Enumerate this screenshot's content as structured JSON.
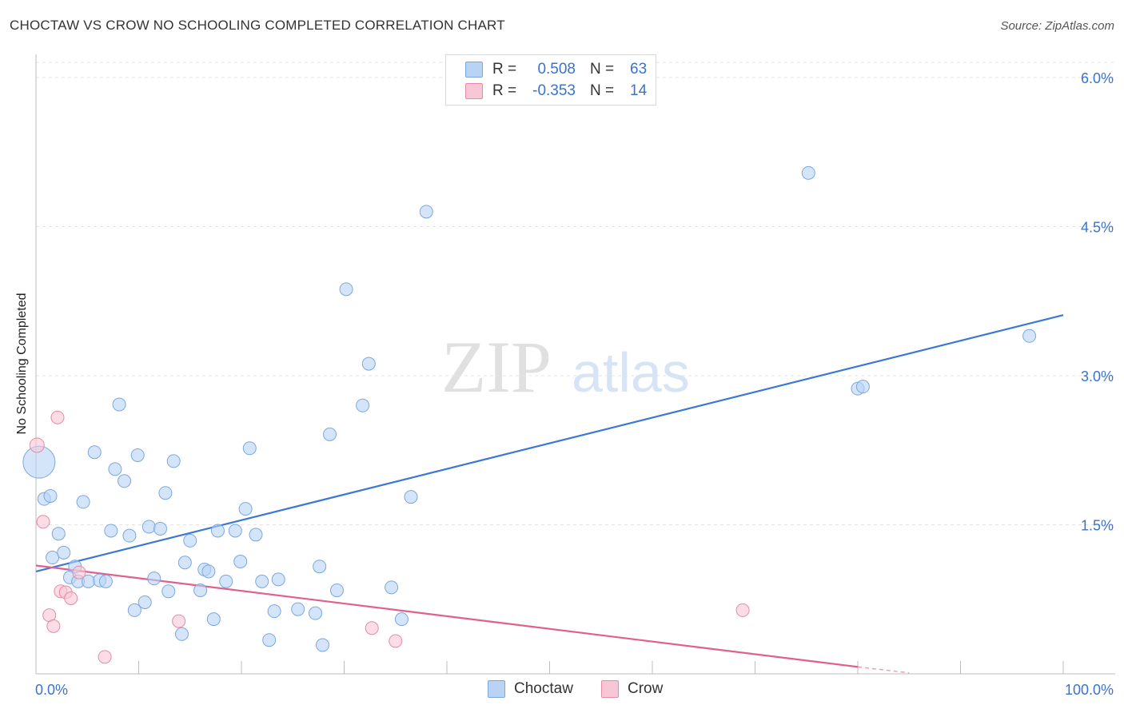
{
  "header": {
    "title": "CHOCTAW VS CROW NO SCHOOLING COMPLETED CORRELATION CHART",
    "source": "Source: ZipAtlas.com"
  },
  "watermark": {
    "zip": "ZIP",
    "atlas": "atlas"
  },
  "legend_stats": [
    {
      "r_label": "R =",
      "r_value": "0.508",
      "n_label": "N =",
      "n_value": "63",
      "fill": "#b9d3f5",
      "stroke": "#7aa7e0"
    },
    {
      "r_label": "R =",
      "r_value": "-0.353",
      "n_label": "N =",
      "n_value": "14",
      "fill": "#f8c7d6",
      "stroke": "#e68aa8"
    }
  ],
  "chart_data": {
    "type": "scatter",
    "title": "CHOCTAW VS CROW NO SCHOOLING COMPLETED CORRELATION CHART",
    "xlabel": "",
    "ylabel": "No Schooling Completed",
    "xlim": [
      0,
      100
    ],
    "ylim": [
      0,
      6.25
    ],
    "x_tick_labels": [
      "0.0%",
      "100.0%"
    ],
    "y_ticks": [
      1.5,
      3.0,
      4.5,
      6.0
    ],
    "y_tick_labels": [
      "1.5%",
      "3.0%",
      "4.5%",
      "6.0%"
    ],
    "grid": true,
    "legend_position": "top-center",
    "series": [
      {
        "name": "Choctaw",
        "color": "#3a78d4",
        "fill": "#b9d3f5",
        "stroke": "#7aa7e0",
        "trend": {
          "x": [
            0,
            100
          ],
          "y": [
            1.03,
            3.61
          ]
        },
        "points": [
          [
            0.3,
            2.13,
            20
          ],
          [
            0.8,
            1.76,
            8
          ],
          [
            1.4,
            1.79,
            8
          ],
          [
            1.6,
            1.17,
            8
          ],
          [
            2.2,
            1.41,
            8
          ],
          [
            2.7,
            1.22,
            8
          ],
          [
            3.3,
            0.97,
            8
          ],
          [
            3.8,
            1.08,
            8
          ],
          [
            4.1,
            0.93,
            8
          ],
          [
            4.6,
            1.73,
            8
          ],
          [
            5.1,
            0.93,
            8
          ],
          [
            5.7,
            2.23,
            8
          ],
          [
            6.2,
            0.94,
            8
          ],
          [
            6.8,
            0.93,
            8
          ],
          [
            7.3,
            1.44,
            8
          ],
          [
            7.7,
            2.06,
            8
          ],
          [
            8.1,
            2.71,
            8
          ],
          [
            8.6,
            1.94,
            8
          ],
          [
            9.1,
            1.39,
            8
          ],
          [
            9.6,
            0.64,
            8
          ],
          [
            9.9,
            2.2,
            8
          ],
          [
            10.6,
            0.72,
            8
          ],
          [
            11.0,
            1.48,
            8
          ],
          [
            11.5,
            0.96,
            8
          ],
          [
            12.1,
            1.46,
            8
          ],
          [
            12.6,
            1.82,
            8
          ],
          [
            12.9,
            0.83,
            8
          ],
          [
            13.4,
            2.14,
            8
          ],
          [
            14.2,
            0.4,
            8
          ],
          [
            14.5,
            1.12,
            8
          ],
          [
            15.0,
            1.34,
            8
          ],
          [
            16.0,
            0.84,
            8
          ],
          [
            16.4,
            1.05,
            8
          ],
          [
            16.8,
            1.03,
            8
          ],
          [
            17.3,
            0.55,
            8
          ],
          [
            17.7,
            1.44,
            8
          ],
          [
            18.5,
            0.93,
            8
          ],
          [
            19.4,
            1.44,
            8
          ],
          [
            19.9,
            1.13,
            8
          ],
          [
            20.4,
            1.66,
            8
          ],
          [
            20.8,
            2.27,
            8
          ],
          [
            21.4,
            1.4,
            8
          ],
          [
            22.0,
            0.93,
            8
          ],
          [
            22.7,
            0.34,
            8
          ],
          [
            23.2,
            0.63,
            8
          ],
          [
            23.6,
            0.95,
            8
          ],
          [
            25.5,
            0.65,
            8
          ],
          [
            27.2,
            0.61,
            8
          ],
          [
            27.6,
            1.08,
            8
          ],
          [
            27.9,
            0.29,
            8
          ],
          [
            28.6,
            2.41,
            8
          ],
          [
            29.3,
            0.84,
            8
          ],
          [
            30.2,
            3.87,
            8
          ],
          [
            31.8,
            2.7,
            8
          ],
          [
            32.4,
            3.12,
            8
          ],
          [
            34.6,
            0.87,
            8
          ],
          [
            35.6,
            0.55,
            8
          ],
          [
            36.5,
            1.78,
            8
          ],
          [
            38.0,
            4.65,
            8
          ],
          [
            75.2,
            5.04,
            8
          ],
          [
            80.0,
            2.87,
            8
          ],
          [
            80.5,
            2.89,
            8
          ],
          [
            96.7,
            3.4,
            8
          ]
        ]
      },
      {
        "name": "Crow",
        "color": "#e0608c",
        "fill": "#f8c7d6",
        "stroke": "#e68aa8",
        "trend": {
          "x": [
            0,
            80
          ],
          "y": [
            1.09,
            0.07
          ]
        },
        "trend_dashed": {
          "x": [
            80,
            85
          ],
          "y": [
            0.07,
            0.01
          ]
        },
        "points": [
          [
            0.1,
            2.3,
            9
          ],
          [
            0.7,
            1.53,
            8
          ],
          [
            1.3,
            0.59,
            8
          ],
          [
            1.7,
            0.48,
            8
          ],
          [
            2.1,
            2.58,
            8
          ],
          [
            2.4,
            0.83,
            8
          ],
          [
            2.9,
            0.82,
            8
          ],
          [
            3.4,
            0.76,
            8
          ],
          [
            4.2,
            1.02,
            8
          ],
          [
            6.7,
            0.17,
            8
          ],
          [
            13.9,
            0.53,
            8
          ],
          [
            32.7,
            0.46,
            8
          ],
          [
            35.0,
            0.33,
            8
          ],
          [
            68.8,
            0.64,
            8
          ]
        ]
      }
    ]
  },
  "bottom_legend": [
    {
      "label": "Choctaw",
      "fill": "#b9d3f5",
      "stroke": "#7aa7e0"
    },
    {
      "label": "Crow",
      "fill": "#f8c7d6",
      "stroke": "#e68aa8"
    }
  ]
}
